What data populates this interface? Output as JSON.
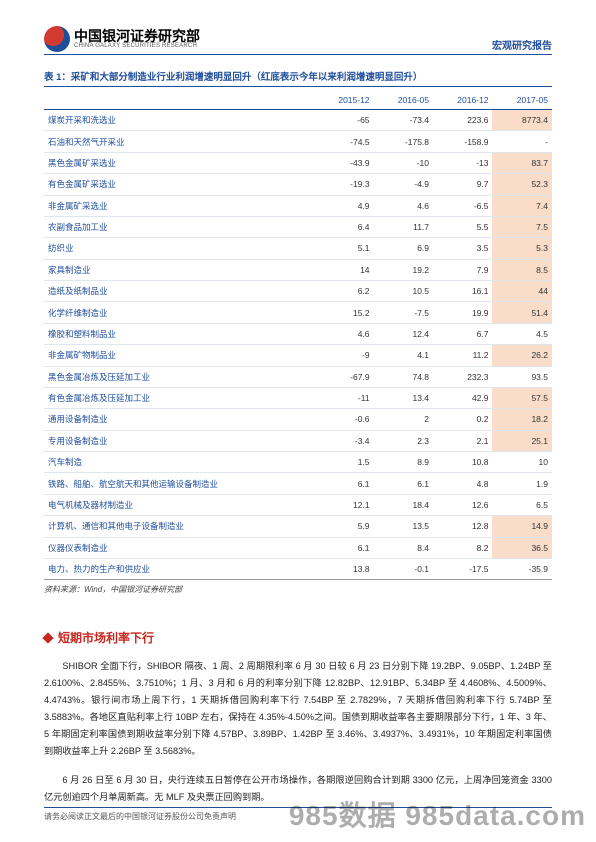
{
  "header": {
    "org_cn": "中国银河证券研究部",
    "org_en": "CHINA GALAXY SECURITIES RESEARCH",
    "report_type": "宏观研究报告"
  },
  "table": {
    "title": "表 1：采矿和大部分制造业行业利润增速明显回升（红底表示今年以来利润增速明显回升）",
    "columns": [
      "",
      "2015-12",
      "2016-05",
      "2016-12",
      "2017-05"
    ],
    "rows": [
      {
        "label": "煤炭开采和洗选业",
        "v": [
          "-65",
          "-73.4",
          "223.6",
          "8773.4"
        ],
        "hl": [
          false,
          false,
          false,
          true
        ]
      },
      {
        "label": "石油和天然气开采业",
        "v": [
          "-74.5",
          "-175.8",
          "-158.9",
          "-"
        ],
        "hl": [
          false,
          false,
          false,
          false
        ]
      },
      {
        "label": "黑色金属矿采选业",
        "v": [
          "-43.9",
          "-10",
          "-13",
          "83.7"
        ],
        "hl": [
          false,
          false,
          false,
          true
        ]
      },
      {
        "label": "有色金属矿采选业",
        "v": [
          "-19.3",
          "-4.9",
          "9.7",
          "52.3"
        ],
        "hl": [
          false,
          false,
          false,
          true
        ]
      },
      {
        "label": "非金属矿采选业",
        "v": [
          "4.9",
          "4.6",
          "-6.5",
          "7.4"
        ],
        "hl": [
          false,
          false,
          false,
          true
        ]
      },
      {
        "label": "农副食品加工业",
        "v": [
          "6.4",
          "11.7",
          "5.5",
          "7.5"
        ],
        "hl": [
          false,
          false,
          false,
          true
        ]
      },
      {
        "label": "纺织业",
        "v": [
          "5.1",
          "6.9",
          "3.5",
          "5.3"
        ],
        "hl": [
          false,
          false,
          false,
          true
        ]
      },
      {
        "label": "家具制造业",
        "v": [
          "14",
          "19.2",
          "7.9",
          "8.5"
        ],
        "hl": [
          false,
          false,
          false,
          true
        ]
      },
      {
        "label": "造纸及纸制品业",
        "v": [
          "6.2",
          "10.5",
          "16.1",
          "44"
        ],
        "hl": [
          false,
          false,
          false,
          true
        ]
      },
      {
        "label": "化学纤维制造业",
        "v": [
          "15.2",
          "-7.5",
          "19.9",
          "51.4"
        ],
        "hl": [
          false,
          false,
          false,
          true
        ]
      },
      {
        "label": "橡胶和塑料制品业",
        "v": [
          "4.6",
          "12.4",
          "6.7",
          "4.5"
        ],
        "hl": [
          false,
          false,
          false,
          false
        ]
      },
      {
        "label": "非金属矿物制品业",
        "v": [
          "-9",
          "4.1",
          "11.2",
          "26.2"
        ],
        "hl": [
          false,
          false,
          false,
          true
        ]
      },
      {
        "label": "黑色金属冶炼及压延加工业",
        "v": [
          "-67.9",
          "74.8",
          "232.3",
          "93.5"
        ],
        "hl": [
          false,
          false,
          false,
          false
        ]
      },
      {
        "label": "有色金属冶炼及压延加工业",
        "v": [
          "-11",
          "13.4",
          "42.9",
          "57.5"
        ],
        "hl": [
          false,
          false,
          false,
          true
        ]
      },
      {
        "label": "通用设备制造业",
        "v": [
          "-0.6",
          "2",
          "0.2",
          "18.2"
        ],
        "hl": [
          false,
          false,
          false,
          true
        ]
      },
      {
        "label": "专用设备制造业",
        "v": [
          "-3.4",
          "2.3",
          "2.1",
          "25.1"
        ],
        "hl": [
          false,
          false,
          false,
          true
        ]
      },
      {
        "label": "汽车制造",
        "v": [
          "1.5",
          "8.9",
          "10.8",
          "10"
        ],
        "hl": [
          false,
          false,
          false,
          false
        ]
      },
      {
        "label": "铁路、船舶、航空航天和其他运输设备制造业",
        "v": [
          "6.1",
          "6.1",
          "4.8",
          "1.9"
        ],
        "hl": [
          false,
          false,
          false,
          false
        ]
      },
      {
        "label": "电气机械及器材制造业",
        "v": [
          "12.1",
          "18.4",
          "12.6",
          "6.5"
        ],
        "hl": [
          false,
          false,
          false,
          false
        ]
      },
      {
        "label": "计算机、通信和其他电子设备制造业",
        "v": [
          "5.9",
          "13.5",
          "12.8",
          "14.9"
        ],
        "hl": [
          false,
          false,
          false,
          true
        ]
      },
      {
        "label": "仪器仪表制造业",
        "v": [
          "6.1",
          "8.4",
          "8.2",
          "36.5"
        ],
        "hl": [
          false,
          false,
          false,
          true
        ]
      },
      {
        "label": "电力、热力的生产和供应业",
        "v": [
          "13.8",
          "-0.1",
          "-17.5",
          "-35.9"
        ],
        "hl": [
          false,
          false,
          false,
          false
        ]
      }
    ],
    "source": "资料来源：Wind，中国银河证券研究部"
  },
  "section": {
    "title": "短期市场利率下行",
    "p1": "SHIBOR 全面下行，SHIBOR 隔夜、1 周、2 周期限利率 6 月 30 日较 6 月 23 日分别下降 19.2BP、9.05BP、1.24BP 至 2.6100%、2.8455%、3.7510%；1 月、3 月和 6 月的利率分别下降 12.82BP、12.91BP、5.34BP 至 4.4608%、4.5009%、4.4743%。银行间市场上周下行，1 天期拆借回购利率下行 7.54BP 至 2.7829%，7 天期拆借回购利率下行 5.74BP 至 3.5883%。各地区直贴利率上行 10BP 左右，保持在 4.35%-4.50%之间。国债到期收益率各主要期限部分下行，1 年、3 年、5 年期固定利率国债到期收益率分别下降 4.57BP、3.89BP、1.42BP 至 3.46%、3.4937%、3.4931%，10 年期固定利率国债到期收益率上升 2.26BP 至 3.5683%。",
    "p2": "6 月 26 日至 6 月 30 日，央行连续五日暂停在公开市场操作，各期限逆回购合计到期 3300 亿元，上周净回笼资金 3300 亿元创逾四个月单周新高。无 MLF 及央票正回购到期。"
  },
  "footer": {
    "left": "请务必阅读正文最后的中国银河证券股份公司免责声明"
  },
  "watermark": "985数据 985data.com",
  "colors": {
    "brand_blue": "#1f4e9b",
    "accent_red": "#c62820",
    "highlight_bg": "#f9ddc8"
  }
}
